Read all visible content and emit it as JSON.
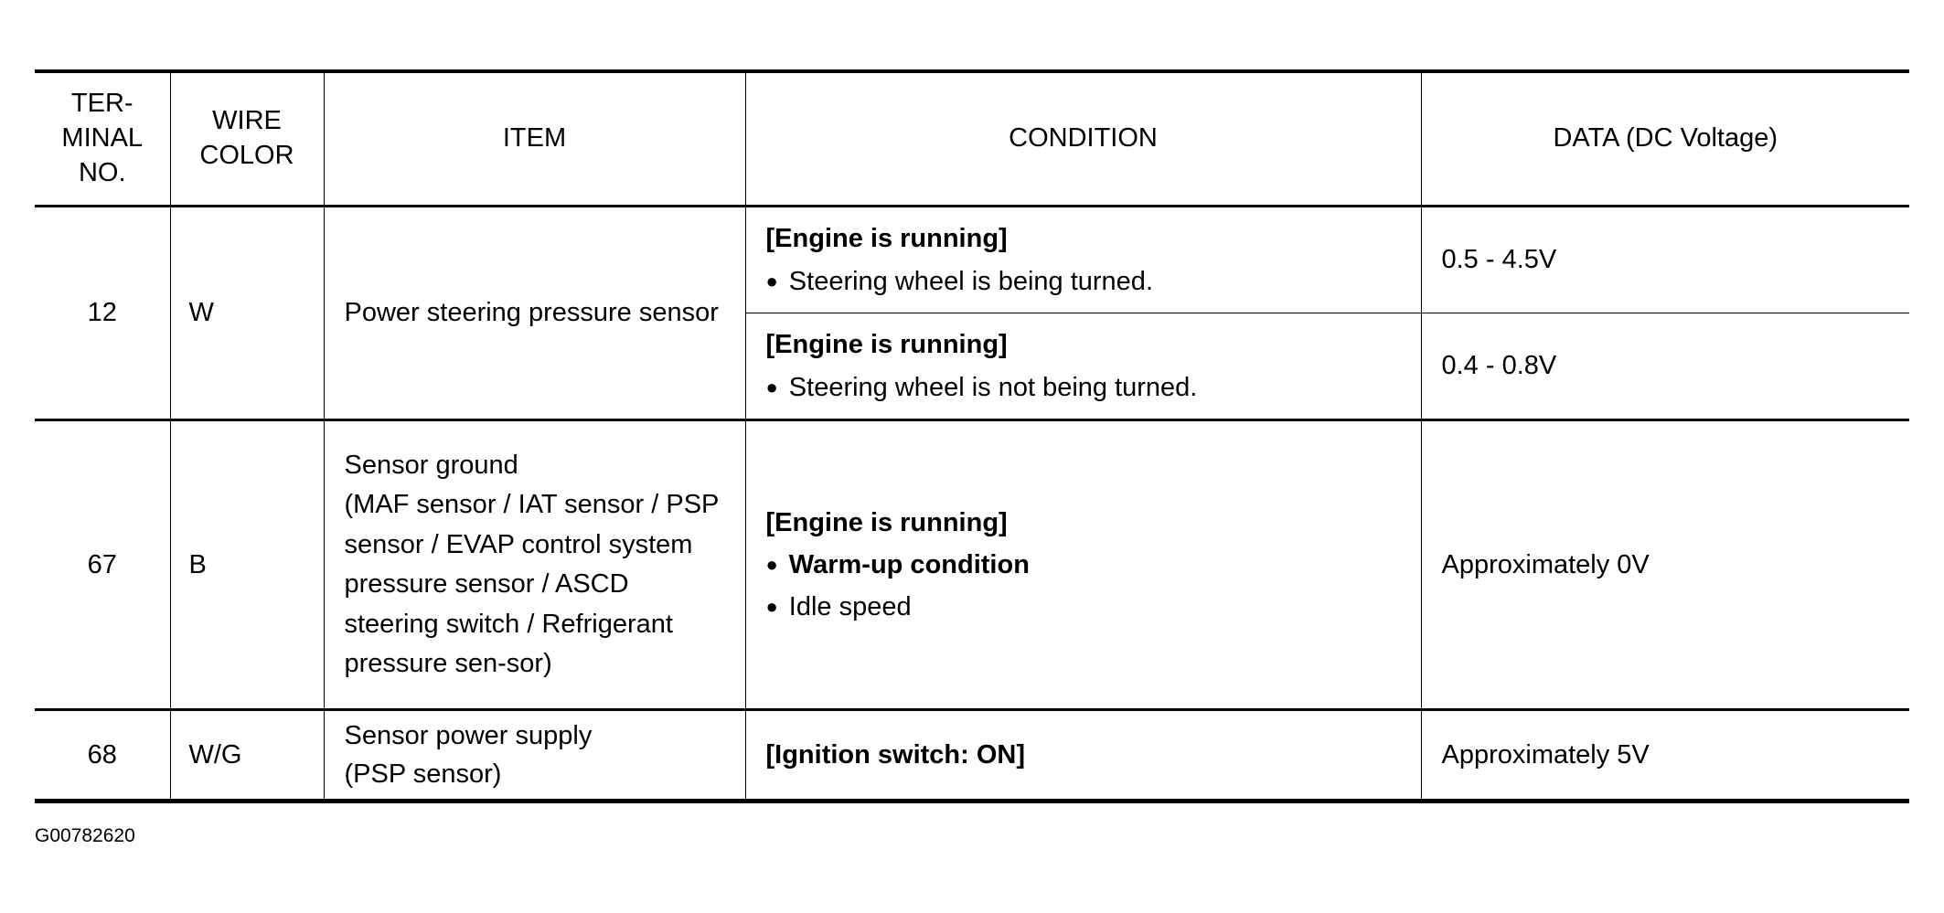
{
  "headers": {
    "terminal": "TER-\nMINAL\nNO.",
    "wire": "WIRE\nCOLOR",
    "item": "ITEM",
    "condition": "CONDITION",
    "data": "DATA (DC Voltage)"
  },
  "rows": [
    {
      "terminal": "12",
      "wire": "W",
      "item": "Power steering pressure sensor",
      "conditions": [
        {
          "heading": "[Engine is running]",
          "bullet": "Steering wheel is being turned.",
          "data": "0.5 - 4.5V"
        },
        {
          "heading": "[Engine is running]",
          "bullet": "Steering wheel is not being turned.",
          "data": "0.4 - 0.8V"
        }
      ]
    },
    {
      "terminal": "67",
      "wire": "B",
      "item": "Sensor ground\n(MAF sensor / IAT sensor / PSP sensor / EVAP control system pressure sensor / ASCD steering switch / Refrigerant pressure sen-sor)",
      "heading": "[Engine is running]",
      "bullets": [
        "Warm-up condition",
        "Idle speed"
      ],
      "data": "Approximately 0V"
    },
    {
      "terminal": "68",
      "wire": "W/G",
      "item": "Sensor power supply\n(PSP sensor)",
      "heading": "[Ignition switch: ON]",
      "data": "Approximately 5V"
    }
  ],
  "figure_id": "G00782620"
}
